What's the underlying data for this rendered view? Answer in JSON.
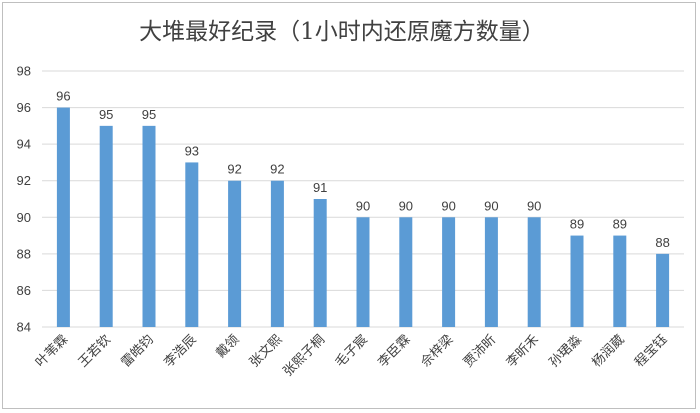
{
  "chart_data": {
    "type": "bar",
    "title": "大堆最好纪录（1小时内还原魔方数量）",
    "xlabel": "",
    "ylabel": "",
    "categories": [
      "叶苇霖",
      "王若钦",
      "雷皓钧",
      "李浩辰",
      "戴领",
      "张文熙",
      "张熙子桐",
      "毛子宸",
      "李臣霖",
      "佘梓梁",
      "贾沛昕",
      "李昕禾",
      "孙珺淼",
      "杨润葳",
      "程宝钰"
    ],
    "values": [
      96,
      95,
      95,
      93,
      92,
      92,
      91,
      90,
      90,
      90,
      90,
      90,
      89,
      89,
      88
    ],
    "ylim": [
      84,
      98
    ],
    "yticks": [
      84,
      86,
      88,
      90,
      92,
      94,
      96,
      98
    ],
    "grid": true,
    "legend": "none",
    "bar_color": "#5b9bd5"
  }
}
